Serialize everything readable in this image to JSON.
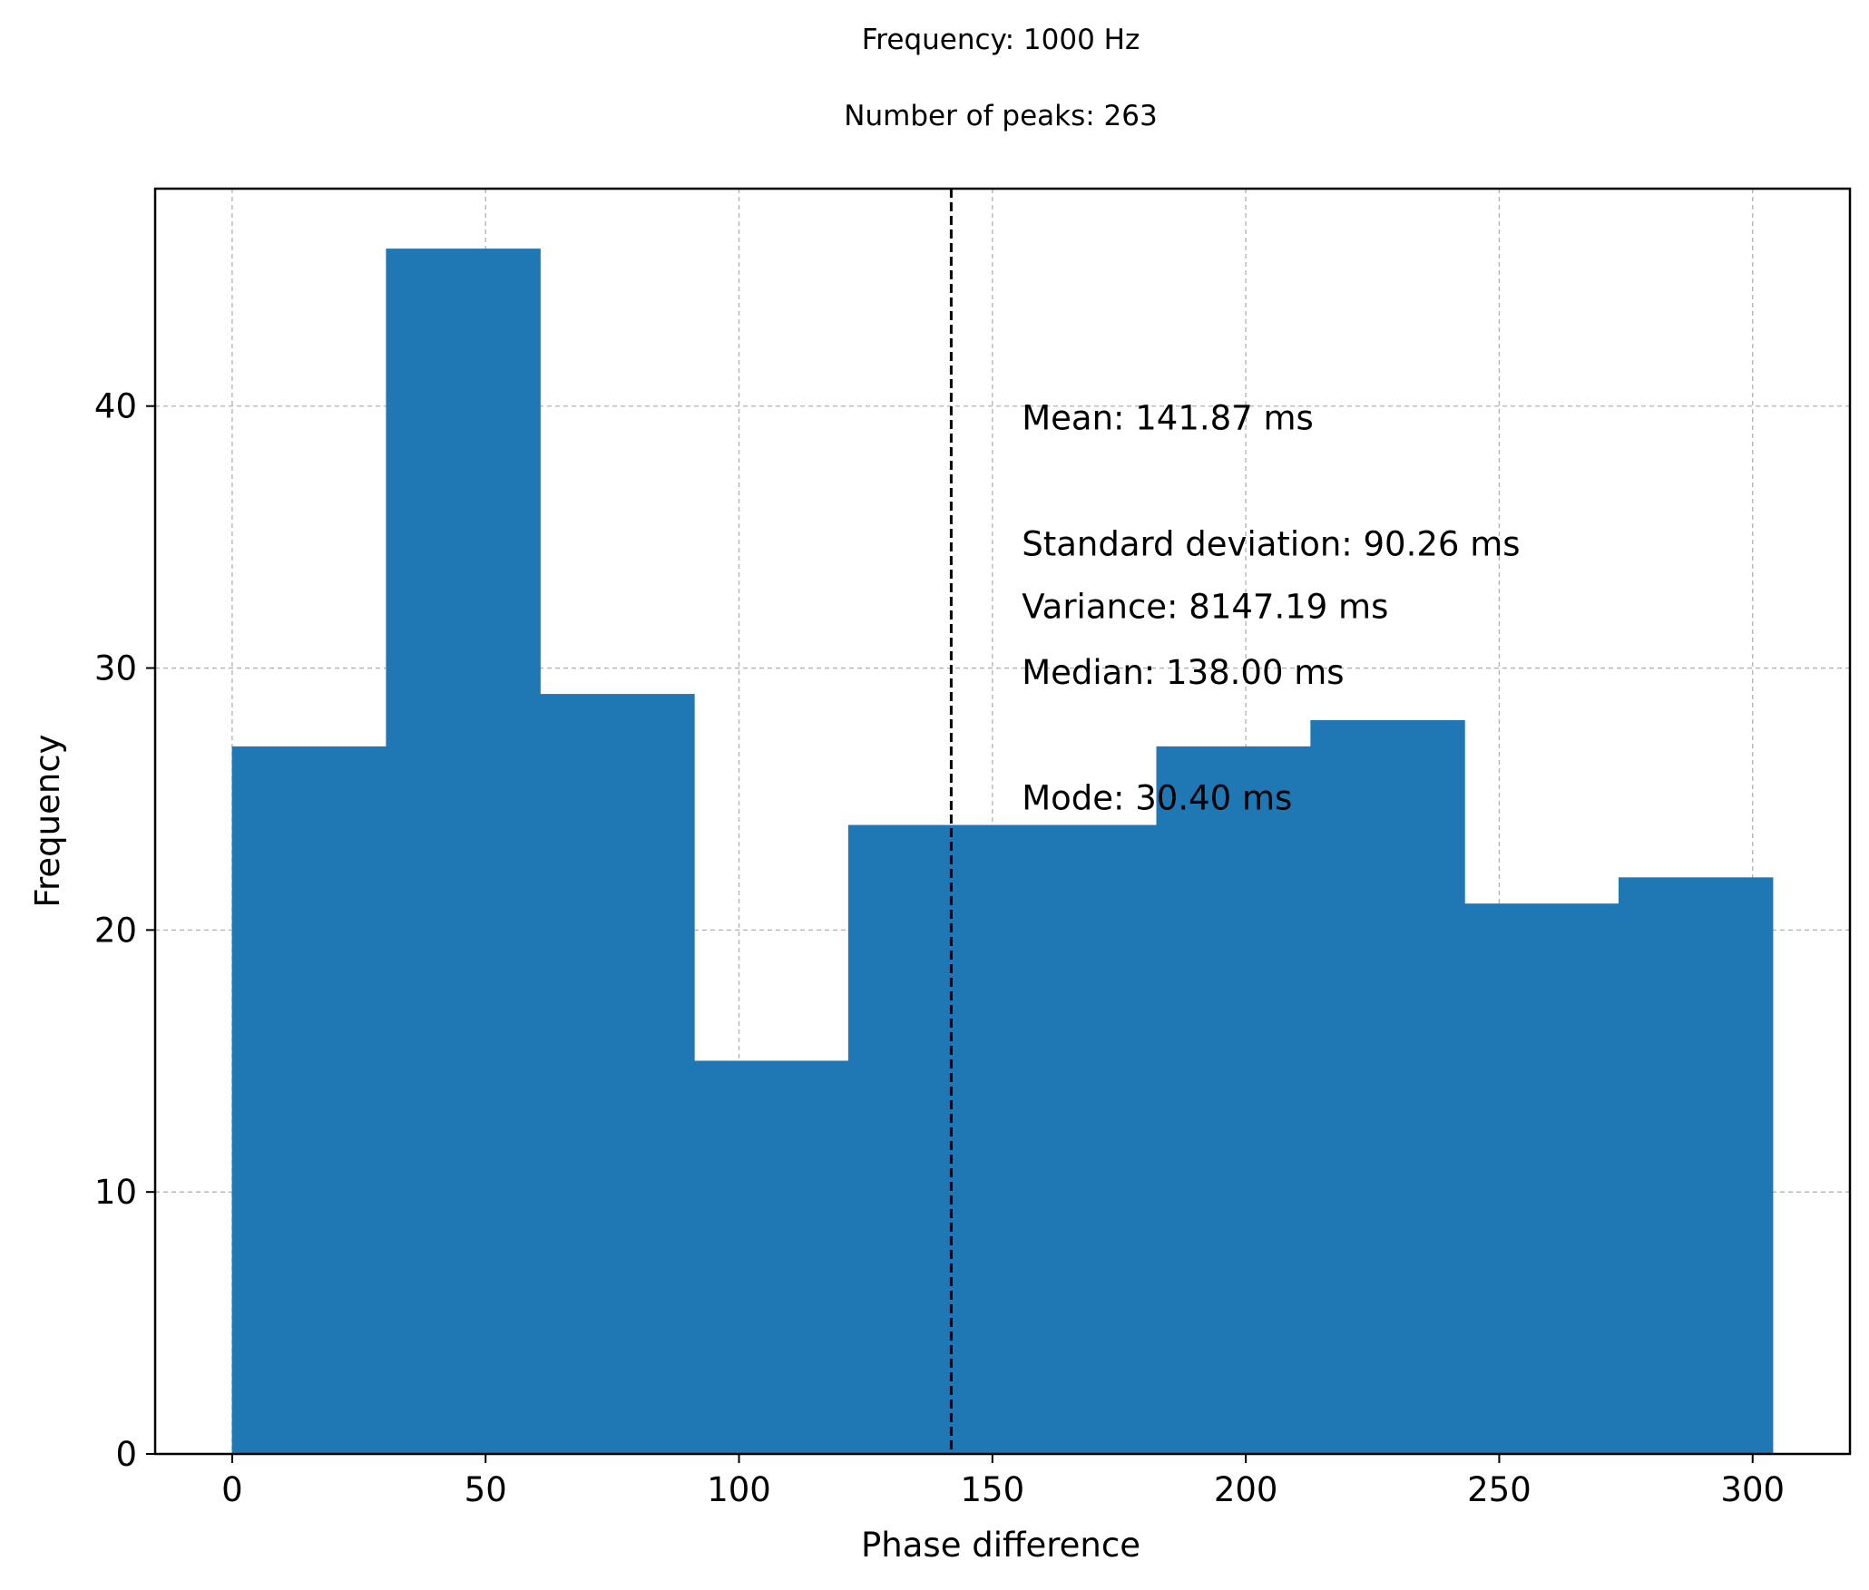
{
  "chart_data": {
    "type": "bar",
    "title": "Frequency: 1000 Hz",
    "subtitle": "Number of peaks: 263",
    "xlabel": "Phase difference",
    "ylabel": "Frequency",
    "xlim": [
      -15.2,
      319.2
    ],
    "ylim": [
      0,
      48.3
    ],
    "xticks": [
      0,
      50,
      100,
      150,
      200,
      250,
      300
    ],
    "yticks": [
      0,
      10,
      20,
      30,
      40
    ],
    "grid": true,
    "bar_color": "#1f77b4",
    "bins": [
      {
        "x0": 0.0,
        "x1": 30.4,
        "value": 27
      },
      {
        "x0": 30.4,
        "x1": 60.8,
        "value": 46
      },
      {
        "x0": 60.8,
        "x1": 91.2,
        "value": 29
      },
      {
        "x0": 91.2,
        "x1": 121.6,
        "value": 15
      },
      {
        "x0": 121.6,
        "x1": 152.0,
        "value": 24
      },
      {
        "x0": 152.0,
        "x1": 182.4,
        "value": 24
      },
      {
        "x0": 182.4,
        "x1": 212.8,
        "value": 27
      },
      {
        "x0": 212.8,
        "x1": 243.2,
        "value": 28
      },
      {
        "x0": 243.2,
        "x1": 273.6,
        "value": 21
      },
      {
        "x0": 273.6,
        "x1": 304.0,
        "value": 22
      }
    ],
    "mean_line": {
      "x": 141.87,
      "style": "dashed",
      "color": "#000000"
    },
    "annotations": [
      {
        "text": "Mean: 141.87 ms",
        "x": 155.8,
        "y": 39.1
      },
      {
        "text": "Standard deviation: 90.26 ms",
        "x": 155.8,
        "y": 34.3
      },
      {
        "text": "Variance: 8147.19 ms",
        "x": 155.8,
        "y": 31.9
      },
      {
        "text": "Median: 138.00 ms",
        "x": 155.8,
        "y": 29.4
      },
      {
        "text": "Mode: 30.40 ms",
        "x": 155.8,
        "y": 24.6
      }
    ]
  }
}
